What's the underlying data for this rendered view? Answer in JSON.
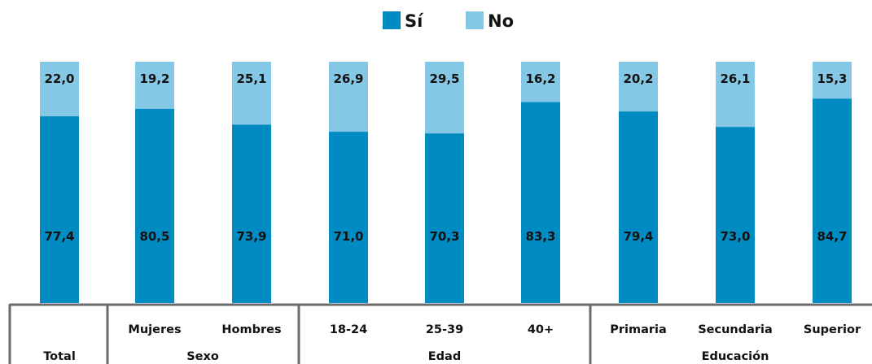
{
  "chart_data": {
    "type": "bar",
    "stacked": true,
    "categories": [
      "Total",
      "Mujeres",
      "Hombres",
      "18-24",
      "25-39",
      "40+",
      "Primaria",
      "Secundaria",
      "Superior"
    ],
    "groups": [
      {
        "label": "Total",
        "categories": [
          "Total"
        ]
      },
      {
        "label": "Sexo",
        "categories": [
          "Mujeres",
          "Hombres"
        ]
      },
      {
        "label": "Edad",
        "categories": [
          "18-24",
          "25-39",
          "40+"
        ]
      },
      {
        "label": "Educación",
        "categories": [
          "Primaria",
          "Secundaria",
          "Superior"
        ]
      }
    ],
    "series": [
      {
        "name": "Sí",
        "color": "#008CC2",
        "values": [
          77.4,
          80.5,
          73.9,
          71.0,
          70.3,
          83.3,
          79.4,
          73.0,
          84.7
        ],
        "labels": [
          "77,4",
          "80,5",
          "73,9",
          "71,0",
          "70,3",
          "83,3",
          "79,4",
          "73,0",
          "84,7"
        ]
      },
      {
        "name": "No",
        "color": "#85C8E6",
        "values": [
          22.0,
          19.2,
          25.1,
          26.9,
          29.5,
          16.2,
          20.2,
          26.1,
          15.3
        ],
        "labels": [
          "22,0",
          "19,2",
          "25,1",
          "26,9",
          "29,5",
          "16,2",
          "20,2",
          "26,1",
          "15,3"
        ]
      }
    ],
    "ylim": [
      0,
      100
    ],
    "grid": false,
    "legend_position": "top-center"
  }
}
